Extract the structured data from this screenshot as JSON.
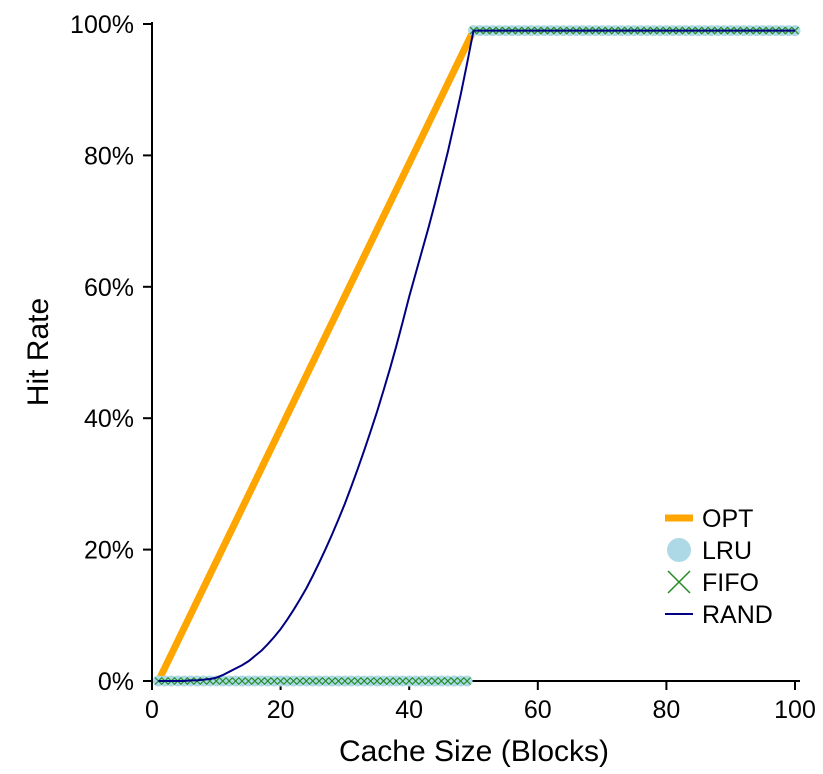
{
  "chart_data": {
    "type": "line",
    "title": "",
    "xlabel": "Cache Size (Blocks)",
    "ylabel": "Hit Rate",
    "xlim": [
      0,
      100
    ],
    "ylim": [
      0,
      100
    ],
    "x_ticks": [
      0,
      20,
      40,
      60,
      80,
      100
    ],
    "x_tick_labels": [
      "0",
      "20",
      "40",
      "60",
      "80",
      "100"
    ],
    "y_ticks": [
      0,
      20,
      40,
      60,
      80,
      100
    ],
    "y_tick_labels": [
      "0%",
      "20%",
      "40%",
      "60%",
      "80%",
      "100%"
    ],
    "grid": false,
    "legend_position": "lower-right",
    "series": [
      {
        "name": "OPT",
        "color": "#ffa500",
        "marker": "thick-line",
        "points": [
          [
            1,
            0
          ],
          [
            50,
            99
          ],
          [
            100,
            99
          ]
        ]
      },
      {
        "name": "LRU",
        "color": "#add8e6",
        "marker": "circle",
        "points_rule": "hit rate 0% for cache sizes 1-49, 99% for cache sizes 50-100",
        "low_value": 0,
        "high_value": 99,
        "threshold": 50,
        "x_range": [
          1,
          100
        ]
      },
      {
        "name": "FIFO",
        "color": "#228b22",
        "marker": "x",
        "points_rule": "hit rate 0% for cache sizes 1-49, 99% for cache sizes 50-100",
        "low_value": 0,
        "high_value": 99,
        "threshold": 50,
        "x_range": [
          1,
          100
        ]
      },
      {
        "name": "RAND",
        "color": "#000080",
        "marker": "thin-line",
        "points": [
          [
            1,
            0
          ],
          [
            2,
            0
          ],
          [
            3,
            0
          ],
          [
            4,
            0
          ],
          [
            5,
            0
          ],
          [
            6,
            0.1
          ],
          [
            7,
            0.1
          ],
          [
            8,
            0.2
          ],
          [
            9,
            0.3
          ],
          [
            10,
            0.5
          ],
          [
            11,
            0.9
          ],
          [
            12,
            1.4
          ],
          [
            13,
            1.9
          ],
          [
            14,
            2.4
          ],
          [
            15,
            3.0
          ],
          [
            16,
            3.8
          ],
          [
            17,
            4.6
          ],
          [
            18,
            5.6
          ],
          [
            19,
            6.7
          ],
          [
            20,
            7.9
          ],
          [
            21,
            9.3
          ],
          [
            22,
            10.8
          ],
          [
            23,
            12.4
          ],
          [
            24,
            14.1
          ],
          [
            25,
            16.0
          ],
          [
            26,
            18.0
          ],
          [
            27,
            20.1
          ],
          [
            28,
            22.3
          ],
          [
            29,
            24.6
          ],
          [
            30,
            27.0
          ],
          [
            31,
            29.6
          ],
          [
            32,
            32.3
          ],
          [
            33,
            35.1
          ],
          [
            34,
            38.0
          ],
          [
            35,
            41.0
          ],
          [
            36,
            44.2
          ],
          [
            37,
            47.5
          ],
          [
            38,
            51.0
          ],
          [
            39,
            54.7
          ],
          [
            40,
            58.5
          ],
          [
            41,
            62.0
          ],
          [
            42,
            65.5
          ],
          [
            43,
            69.0
          ],
          [
            44,
            72.7
          ],
          [
            45,
            76.6
          ],
          [
            46,
            80.5
          ],
          [
            47,
            84.8
          ],
          [
            48,
            89.2
          ],
          [
            49,
            94.0
          ],
          [
            50,
            99
          ],
          [
            60,
            99
          ],
          [
            70,
            99
          ],
          [
            80,
            99
          ],
          [
            90,
            99
          ],
          [
            100,
            99
          ]
        ]
      }
    ]
  }
}
